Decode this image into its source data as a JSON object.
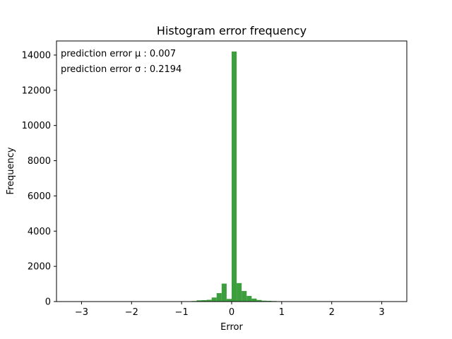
{
  "chart_data": {
    "type": "bar",
    "title": "Histogram error frequency",
    "xlabel": "Error",
    "ylabel": "Frequency",
    "xlim": [
      -3.5,
      3.5
    ],
    "ylim": [
      0,
      14800
    ],
    "x_ticks": [
      -3,
      -2,
      -1,
      0,
      1,
      2,
      3
    ],
    "x_tick_labels": [
      "−3",
      "−2",
      "−1",
      "0",
      "1",
      "2",
      "3"
    ],
    "y_ticks": [
      0,
      2000,
      4000,
      6000,
      8000,
      10000,
      12000,
      14000
    ],
    "y_tick_labels": [
      "0",
      "2000",
      "4000",
      "6000",
      "8000",
      "10000",
      "12000",
      "14000"
    ],
    "color": "#3d9e3d",
    "annotations": [
      "prediction error μ : 0.007",
      "prediction error σ : 0.2194"
    ],
    "bins": [
      {
        "x0": -0.9,
        "x1": -0.8,
        "value": 10
      },
      {
        "x0": -0.8,
        "x1": -0.7,
        "value": 30
      },
      {
        "x0": -0.7,
        "x1": -0.6,
        "value": 70
      },
      {
        "x0": -0.6,
        "x1": -0.5,
        "value": 80
      },
      {
        "x0": -0.5,
        "x1": -0.4,
        "value": 100
      },
      {
        "x0": -0.4,
        "x1": -0.3,
        "value": 230
      },
      {
        "x0": -0.3,
        "x1": -0.2,
        "value": 480
      },
      {
        "x0": -0.2,
        "x1": -0.1,
        "value": 1020
      },
      {
        "x0": -0.1,
        "x1": 0.0,
        "value": 150
      },
      {
        "x0": 0.0,
        "x1": 0.1,
        "value": 14200
      },
      {
        "x0": 0.1,
        "x1": 0.2,
        "value": 1050
      },
      {
        "x0": 0.2,
        "x1": 0.3,
        "value": 600
      },
      {
        "x0": 0.3,
        "x1": 0.4,
        "value": 320
      },
      {
        "x0": 0.4,
        "x1": 0.5,
        "value": 170
      },
      {
        "x0": 0.5,
        "x1": 0.6,
        "value": 90
      },
      {
        "x0": 0.6,
        "x1": 0.7,
        "value": 50
      },
      {
        "x0": 0.7,
        "x1": 0.8,
        "value": 40
      },
      {
        "x0": 0.8,
        "x1": 0.9,
        "value": 30
      },
      {
        "x0": 0.9,
        "x1": 1.0,
        "value": 20
      }
    ]
  }
}
